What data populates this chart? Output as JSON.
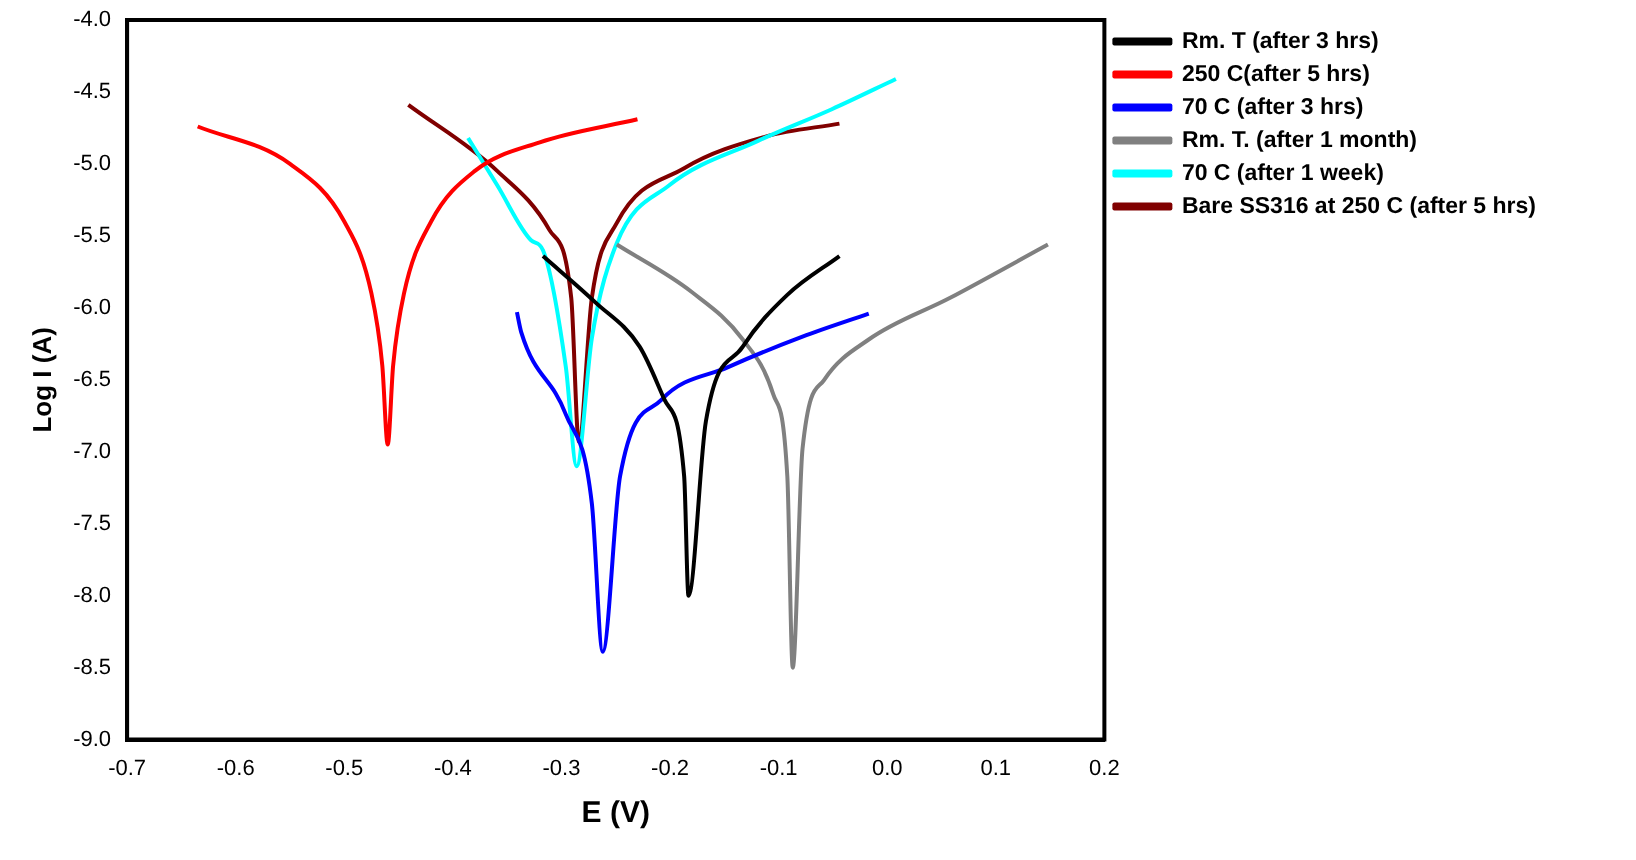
{
  "chart_data": {
    "type": "line",
    "xlabel": "E (V)",
    "ylabel": "Log I (A)",
    "xlim": [
      -0.7,
      0.2
    ],
    "ylim": [
      -9.0,
      -4.0
    ],
    "xticks": [
      -0.7,
      -0.6,
      -0.5,
      -0.4,
      -0.3,
      -0.2,
      -0.1,
      {
        "value": 0,
        "label": "0.0"
      },
      0.1,
      0.2
    ],
    "yticks": [
      {
        "value": -9,
        "label": "-9.0"
      },
      -8.5,
      {
        "value": -8,
        "label": "-8.0"
      },
      -7.5,
      {
        "value": -7,
        "label": "-7.0"
      },
      -6.5,
      {
        "value": -6,
        "label": "-6.0"
      },
      -5.5,
      {
        "value": -5,
        "label": "-5.0"
      },
      -4.5,
      {
        "value": -4,
        "label": "-4.0"
      }
    ],
    "grid": false,
    "legend": "right",
    "marker": "none",
    "line_style": "solid",
    "series": [
      {
        "name": "Rm. T (after 3 hrs)",
        "color": "#000000",
        "x": [
          -0.317,
          -0.269,
          -0.228,
          -0.205,
          -0.187,
          -0.183,
          -0.167,
          -0.133,
          -0.092,
          -0.044
        ],
        "values": [
          -5.64,
          -5.96,
          -6.27,
          -6.64,
          -7.17,
          -8.0,
          -6.79,
          -6.27,
          -5.91,
          -5.64
        ]
      },
      {
        "name": "250 C(after 5 hrs)",
        "color": "#ff0000",
        "x": [
          -0.635,
          -0.55,
          -0.5,
          -0.475,
          -0.465,
          -0.46,
          -0.455,
          -0.445,
          -0.42,
          -0.38,
          -0.32,
          -0.23
        ],
        "values": [
          -4.74,
          -5.0,
          -5.4,
          -5.9,
          -6.4,
          -6.95,
          -6.4,
          -5.9,
          -5.4,
          -5.05,
          -4.85,
          -4.69
        ]
      },
      {
        "name": "70 C (after 3 hrs)",
        "color": "#0000ff",
        "x": [
          -0.341,
          -0.337,
          -0.296,
          -0.272,
          -0.262,
          -0.246,
          -0.208,
          -0.146,
          -0.078,
          -0.017
        ],
        "values": [
          -6.03,
          -6.17,
          -6.74,
          -7.36,
          -8.39,
          -7.17,
          -6.64,
          -6.41,
          -6.2,
          -6.04
        ]
      },
      {
        "name": "Rm. T. (after 1 month)",
        "color": "#808080",
        "x": [
          -0.249,
          -0.18,
          -0.133,
          -0.105,
          -0.092,
          -0.087,
          -0.078,
          -0.058,
          -0.017,
          0.058,
          0.148
        ],
        "values": [
          -5.56,
          -5.89,
          -6.22,
          -6.6,
          -7.17,
          -8.5,
          -6.98,
          -6.5,
          -6.22,
          -5.93,
          -5.56
        ]
      },
      {
        "name": "70 C (after 1 week)",
        "color": "#00ffff",
        "x": [
          -0.386,
          -0.359,
          -0.328,
          -0.317,
          -0.296,
          -0.286,
          -0.272,
          -0.249,
          -0.201,
          -0.119,
          -0.051,
          0.008
        ],
        "values": [
          -4.82,
          -5.15,
          -5.53,
          -5.6,
          -6.41,
          -7.1,
          -6.21,
          -5.55,
          -5.15,
          -4.84,
          -4.62,
          -4.41
        ]
      },
      {
        "name": "Bare SS316 at 250 C (after 5 hrs)",
        "color": "#800000",
        "x": [
          -0.441,
          -0.359,
          -0.311,
          -0.291,
          -0.284,
          -0.272,
          -0.249,
          -0.187,
          -0.112,
          -0.044
        ],
        "values": [
          -4.59,
          -5.05,
          -5.46,
          -5.93,
          -6.93,
          -5.93,
          -5.41,
          -5.03,
          -4.81,
          -4.72
        ]
      }
    ]
  }
}
